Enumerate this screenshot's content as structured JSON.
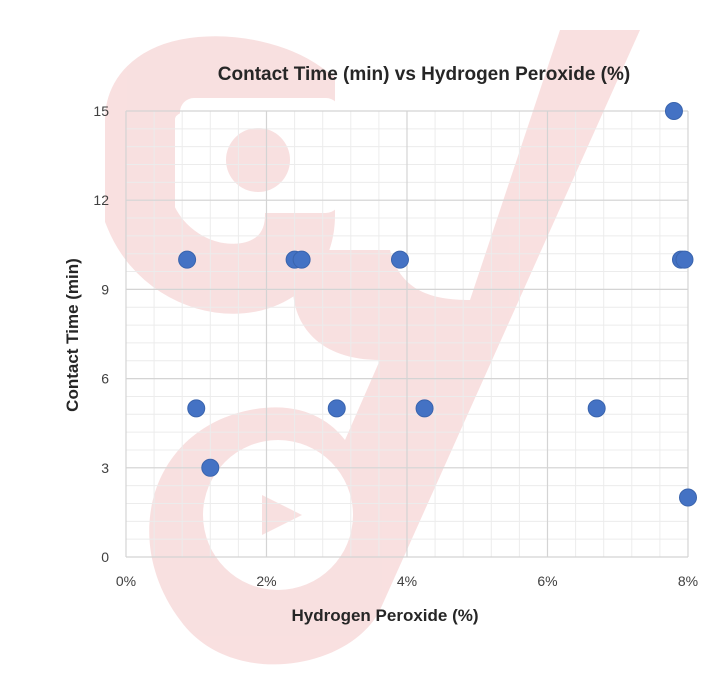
{
  "chart_data": {
    "type": "scatter",
    "title": "Contact Time (min) vs Hydrogen Peroxide (%)",
    "xlabel": "Hydrogen Peroxide (%)",
    "ylabel": "Contact Time (min)",
    "xlim": [
      0,
      8
    ],
    "ylim": [
      0,
      15
    ],
    "x_ticks": [
      "0%",
      "2%",
      "4%",
      "6%",
      "8%"
    ],
    "y_ticks": [
      "0",
      "3",
      "6",
      "9",
      "12",
      "15"
    ],
    "grid": true,
    "minor_grid": true,
    "legend": "none",
    "marker_color": "#4472C4",
    "points": [
      {
        "x": 0.87,
        "y": 10
      },
      {
        "x": 2.4,
        "y": 10
      },
      {
        "x": 2.5,
        "y": 10
      },
      {
        "x": 3.9,
        "y": 10
      },
      {
        "x": 7.9,
        "y": 10
      },
      {
        "x": 7.95,
        "y": 10
      },
      {
        "x": 7.8,
        "y": 15
      },
      {
        "x": 1.0,
        "y": 5
      },
      {
        "x": 3.0,
        "y": 5
      },
      {
        "x": 4.25,
        "y": 5
      },
      {
        "x": 6.7,
        "y": 5
      },
      {
        "x": 1.2,
        "y": 3
      },
      {
        "x": 8.0,
        "y": 2
      }
    ]
  },
  "watermark": {
    "color": "#f4c7c7"
  }
}
